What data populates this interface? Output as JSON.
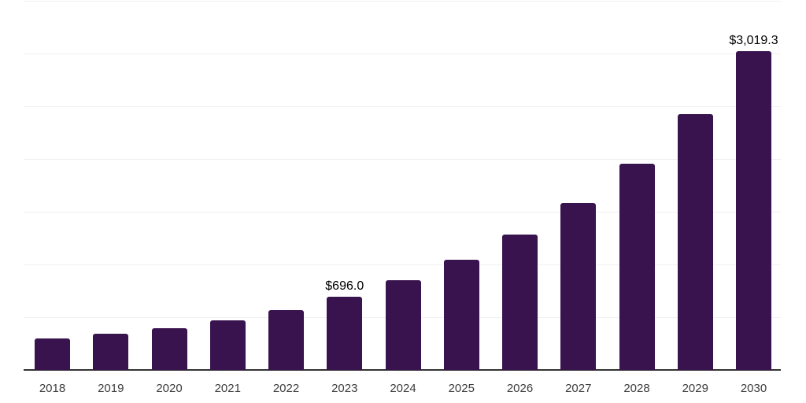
{
  "chart_data": {
    "type": "bar",
    "title": "",
    "xlabel": "",
    "ylabel": "",
    "categories": [
      "2018",
      "2019",
      "2020",
      "2021",
      "2022",
      "2023",
      "2024",
      "2025",
      "2026",
      "2027",
      "2028",
      "2029",
      "2030"
    ],
    "values": [
      295,
      340,
      396,
      470,
      567,
      696.0,
      851,
      1045,
      1287,
      1582,
      1952,
      2425,
      3019.3
    ],
    "data_labels": [
      "",
      "",
      "",
      "",
      "",
      "$696.0",
      "",
      "",
      "",
      "",
      "",
      "",
      "$3,019.3"
    ],
    "ylim": [
      0,
      3500
    ],
    "gridline_step": 500,
    "grid": true,
    "legend": false,
    "bar_color": "#38134e",
    "axis_line_color": "#333333",
    "gridline_color": "#f0f0f0",
    "tick_label_color": "#3d3d3d",
    "data_label_color": "#000000",
    "background": "#ffffff"
  }
}
